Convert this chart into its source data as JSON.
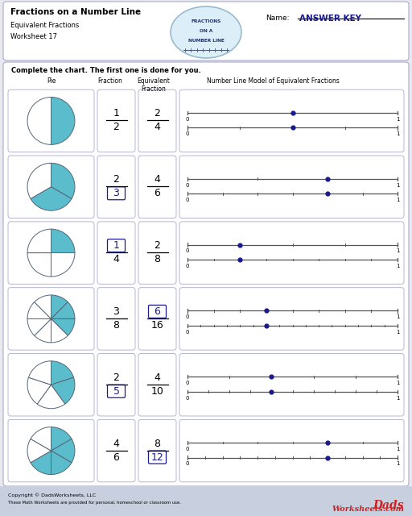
{
  "title": "Fractions on a Number Line",
  "subtitle1": "Equivalent Fractions",
  "subtitle2": "Worksheet 17",
  "name_label": "Name:",
  "answer_key": "ANSWER KEY",
  "instruction": "Complete the chart. The first one is done for you.",
  "col_headers": [
    "Pie",
    "Fraction",
    "Equivalent\nFraction",
    "Number Line Model of Equivalent Fractions"
  ],
  "rows": [
    {
      "fraction_num": "1",
      "fraction_den": "2",
      "equiv_num": "2",
      "equiv_den": "4",
      "frac_num_boxed": false,
      "frac_den_boxed": false,
      "equiv_num_boxed": false,
      "equiv_den_boxed": false,
      "pie_slices": 2,
      "shaded": 1,
      "nl1_ticks": 2,
      "nl1_dot": 0.5,
      "nl2_ticks": 4,
      "nl2_dot": 0.5
    },
    {
      "fraction_num": "2",
      "fraction_den": "3",
      "equiv_num": "4",
      "equiv_den": "6",
      "frac_num_boxed": false,
      "frac_den_boxed": true,
      "equiv_num_boxed": false,
      "equiv_den_boxed": false,
      "pie_slices": 3,
      "shaded": 2,
      "nl1_ticks": 3,
      "nl1_dot": 0.6667,
      "nl2_ticks": 6,
      "nl2_dot": 0.6667
    },
    {
      "fraction_num": "1",
      "fraction_den": "4",
      "equiv_num": "2",
      "equiv_den": "8",
      "frac_num_boxed": true,
      "frac_den_boxed": false,
      "equiv_num_boxed": false,
      "equiv_den_boxed": false,
      "pie_slices": 4,
      "shaded": 1,
      "nl1_ticks": 4,
      "nl1_dot": 0.25,
      "nl2_ticks": 8,
      "nl2_dot": 0.25
    },
    {
      "fraction_num": "3",
      "fraction_den": "8",
      "equiv_num": "6",
      "equiv_den": "16",
      "frac_num_boxed": false,
      "frac_den_boxed": false,
      "equiv_num_boxed": true,
      "equiv_den_boxed": false,
      "pie_slices": 8,
      "shaded": 3,
      "nl1_ticks": 8,
      "nl1_dot": 0.375,
      "nl2_ticks": 16,
      "nl2_dot": 0.375
    },
    {
      "fraction_num": "2",
      "fraction_den": "5",
      "equiv_num": "4",
      "equiv_den": "10",
      "frac_num_boxed": false,
      "frac_den_boxed": true,
      "equiv_num_boxed": false,
      "equiv_den_boxed": false,
      "pie_slices": 5,
      "shaded": 2,
      "nl1_ticks": 5,
      "nl1_dot": 0.4,
      "nl2_ticks": 10,
      "nl2_dot": 0.4
    },
    {
      "fraction_num": "4",
      "fraction_den": "6",
      "equiv_num": "8",
      "equiv_den": "12",
      "frac_num_boxed": false,
      "frac_den_boxed": false,
      "equiv_num_boxed": false,
      "equiv_den_boxed": true,
      "pie_slices": 6,
      "shaded": 4,
      "nl1_ticks": 6,
      "nl1_dot": 0.6667,
      "nl2_ticks": 12,
      "nl2_dot": 0.6667
    }
  ],
  "bg_color": "#e8e8f0",
  "cell_bg": "#ffffff",
  "teal": "#5bbccc",
  "dark_blue": "#1a1a8c",
  "box_color": "#1a1a8c",
  "footer_bg": "#c8d0e0"
}
